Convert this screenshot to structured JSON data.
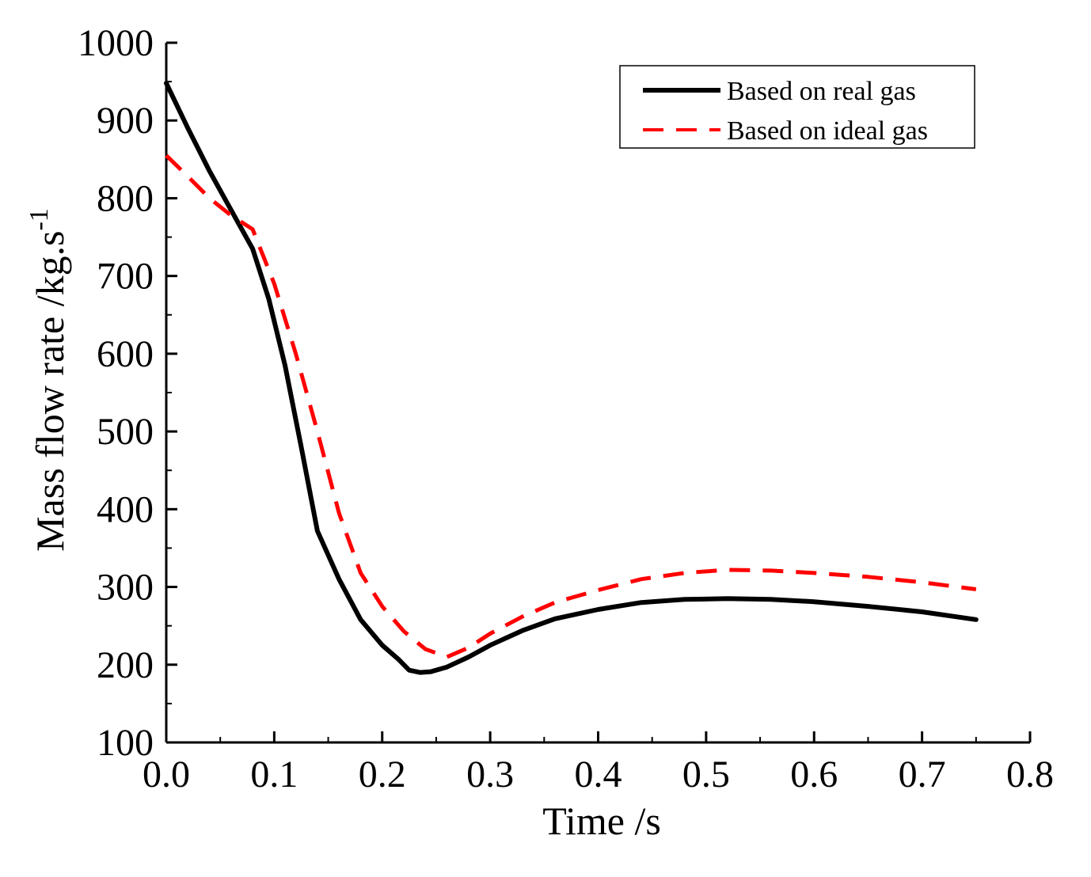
{
  "chart_data": {
    "type": "line",
    "title": "",
    "xlabel": "Time  /s",
    "ylabel_main": "Mass flow rate  /kg.s",
    "ylabel_sup": "-1",
    "xlim": [
      0.0,
      0.8
    ],
    "ylim": [
      100,
      1000
    ],
    "xticks": [
      0.0,
      0.1,
      0.2,
      0.3,
      0.4,
      0.5,
      0.6,
      0.7,
      0.8
    ],
    "xtick_labels": [
      "0.0",
      "0.1",
      "0.2",
      "0.3",
      "0.4",
      "0.5",
      "0.6",
      "0.7",
      "0.8"
    ],
    "yticks": [
      100,
      200,
      300,
      400,
      500,
      600,
      700,
      800,
      900,
      1000
    ],
    "ytick_labels": [
      "100",
      "200",
      "300",
      "400",
      "500",
      "600",
      "700",
      "800",
      "900",
      "1000"
    ],
    "grid": false,
    "legend_position": "top-right",
    "series": [
      {
        "name": "Based on real gas",
        "color": "#000000",
        "style": "solid",
        "x": [
          0.0,
          0.02,
          0.04,
          0.06,
          0.08,
          0.095,
          0.11,
          0.125,
          0.14,
          0.16,
          0.18,
          0.2,
          0.215,
          0.225,
          0.235,
          0.245,
          0.26,
          0.28,
          0.3,
          0.33,
          0.36,
          0.4,
          0.44,
          0.48,
          0.52,
          0.56,
          0.6,
          0.65,
          0.7,
          0.75
        ],
        "y": [
          948,
          890,
          835,
          785,
          735,
          670,
          585,
          480,
          372,
          310,
          258,
          225,
          207,
          193,
          190,
          191,
          197,
          210,
          225,
          244,
          259,
          271,
          280,
          284,
          285,
          284,
          281,
          275,
          268,
          258
        ]
      },
      {
        "name": "Based on ideal gas",
        "color": "#ff0000",
        "style": "dashed",
        "x": [
          0.0,
          0.02,
          0.04,
          0.06,
          0.08,
          0.1,
          0.12,
          0.14,
          0.16,
          0.18,
          0.2,
          0.22,
          0.24,
          0.26,
          0.28,
          0.3,
          0.33,
          0.36,
          0.4,
          0.44,
          0.48,
          0.52,
          0.56,
          0.6,
          0.65,
          0.7,
          0.75
        ],
        "y": [
          855,
          828,
          800,
          778,
          760,
          690,
          600,
          500,
          395,
          318,
          275,
          243,
          220,
          210,
          222,
          240,
          262,
          280,
          296,
          310,
          318,
          322,
          321,
          318,
          313,
          306,
          297
        ]
      }
    ]
  }
}
